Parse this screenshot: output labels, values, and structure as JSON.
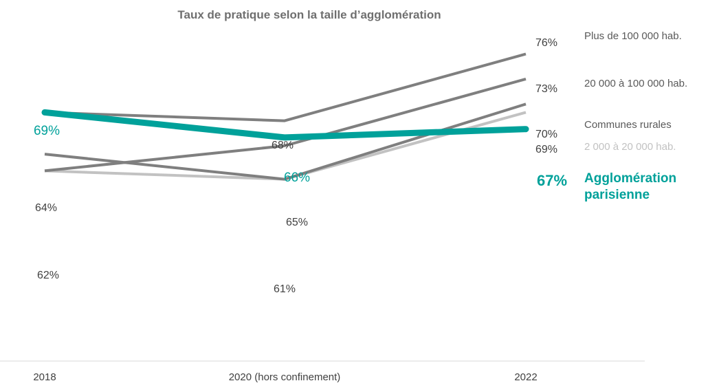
{
  "chart_data": {
    "type": "line",
    "title": "Taux de pratique selon la taille d’agglomération",
    "xlabel": "",
    "ylabel": "",
    "categories": [
      "2018",
      "2020 (hors confinement)",
      "2022"
    ],
    "ylim": [
      53,
      79
    ],
    "grid": false,
    "legend": "right (labels at line ends)",
    "series": [
      {
        "name": "Plus de 100 000 hab.",
        "values": [
          69,
          68,
          76
        ],
        "color": "#7f7f7f",
        "labels": [
          "",
          "68%",
          "76%"
        ]
      },
      {
        "name": "20 000 à 100 000 hab.",
        "values": [
          62,
          65,
          73
        ],
        "color": "#7f7f7f",
        "labels": [
          "",
          "65%",
          "73%"
        ]
      },
      {
        "name": "Communes rurales",
        "values": [
          64,
          61,
          70
        ],
        "color": "#7f7f7f",
        "labels": [
          "64%",
          "",
          "70%"
        ]
      },
      {
        "name": "2 000 à 20 000 hab.",
        "values": [
          62,
          61,
          69
        ],
        "color": "#c2c2c2",
        "labels": [
          "62%",
          "61%",
          "69%"
        ]
      },
      {
        "name": "Agglomération parisienne",
        "name_lines": [
          "Agglomération",
          "parisienne"
        ],
        "values": [
          69,
          66,
          67
        ],
        "color": "#00a19a",
        "labels": [
          "69%",
          "66%",
          "67%"
        ]
      }
    ]
  }
}
